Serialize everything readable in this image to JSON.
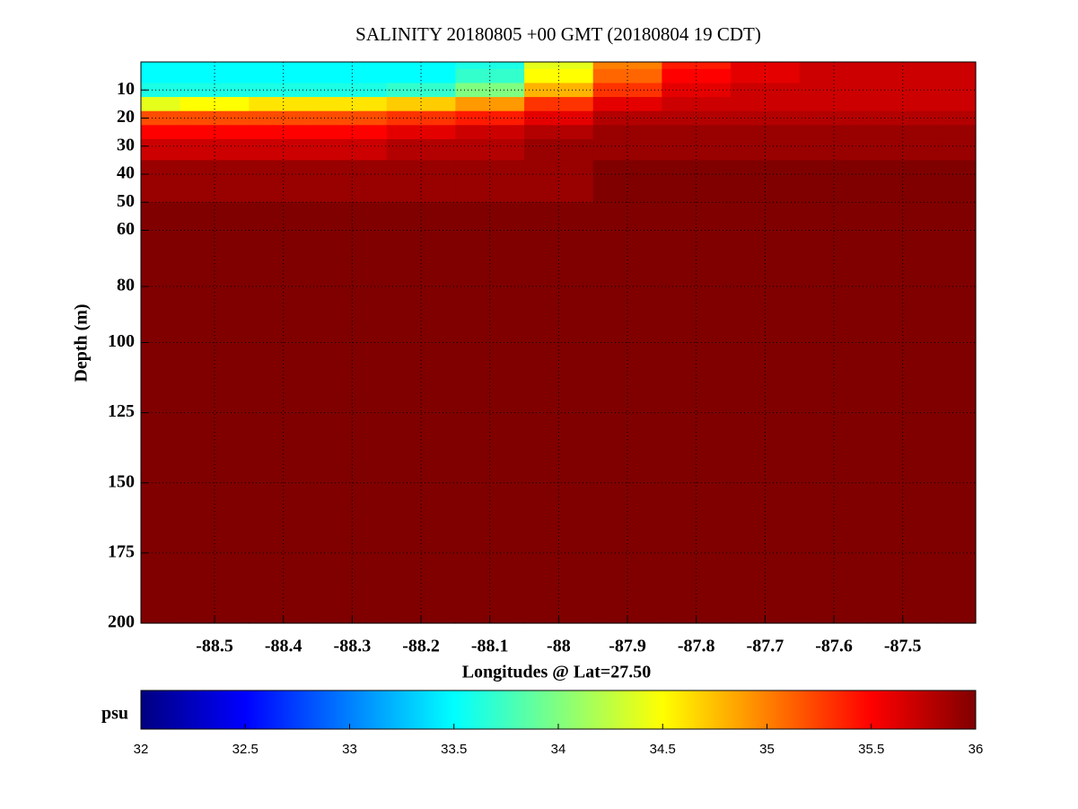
{
  "chart_data": {
    "type": "heatmap",
    "title": "SALINITY 20180805 +00 GMT (20180804 19 CDT)",
    "xlabel": "Longitudes @ Lat=27.50",
    "ylabel": "Depth (m)",
    "x": [
      -88.6,
      -88.5,
      -88.4,
      -88.3,
      -88.2,
      -88.1,
      -88.0,
      -87.9,
      -87.8,
      -87.7,
      -87.6,
      -87.5,
      -87.4
    ],
    "y": [
      0,
      5,
      10,
      15,
      20,
      25,
      30,
      40,
      60,
      100,
      200
    ],
    "z": [
      [
        33.5,
        33.5,
        33.5,
        33.5,
        33.5,
        33.6,
        34.4,
        35.0,
        35.4,
        35.6,
        35.7,
        35.7,
        35.7
      ],
      [
        33.5,
        33.5,
        33.5,
        33.5,
        33.5,
        33.7,
        34.5,
        35.1,
        35.5,
        35.6,
        35.7,
        35.7,
        35.7
      ],
      [
        33.6,
        33.6,
        33.6,
        33.6,
        33.7,
        34.0,
        34.8,
        35.3,
        35.6,
        35.7,
        35.7,
        35.7,
        35.7
      ],
      [
        34.4,
        34.5,
        34.6,
        34.6,
        34.7,
        34.9,
        35.3,
        35.6,
        35.7,
        35.7,
        35.7,
        35.7,
        35.7
      ],
      [
        35.2,
        35.2,
        35.2,
        35.2,
        35.3,
        35.4,
        35.6,
        35.8,
        35.8,
        35.8,
        35.8,
        35.8,
        35.8
      ],
      [
        35.5,
        35.5,
        35.5,
        35.5,
        35.6,
        35.7,
        35.8,
        35.9,
        35.9,
        35.9,
        35.9,
        35.9,
        35.9
      ],
      [
        35.7,
        35.7,
        35.7,
        35.7,
        35.8,
        35.8,
        35.9,
        35.9,
        35.9,
        35.9,
        35.9,
        35.9,
        35.9
      ],
      [
        35.9,
        35.9,
        35.9,
        35.9,
        35.9,
        35.9,
        35.9,
        36.0,
        36.0,
        36.0,
        36.0,
        36.0,
        36.0
      ],
      [
        36.0,
        36.0,
        36.0,
        36.0,
        36.0,
        36.0,
        36.0,
        36.0,
        36.0,
        36.0,
        36.0,
        36.0,
        36.0
      ],
      [
        36.0,
        36.0,
        36.0,
        36.0,
        36.0,
        36.0,
        36.0,
        36.0,
        36.0,
        36.0,
        36.0,
        36.0,
        36.0
      ],
      [
        36.0,
        36.0,
        36.0,
        36.0,
        36.0,
        36.0,
        36.0,
        36.0,
        36.0,
        36.0,
        36.0,
        36.0,
        36.0
      ]
    ],
    "xlim": [
      -88.607,
      -87.394
    ],
    "ylim": [
      200,
      0
    ],
    "xticks": [
      -88.5,
      -88.4,
      -88.3,
      -88.2,
      -88.1,
      -88,
      -87.9,
      -87.8,
      -87.7,
      -87.6,
      -87.5
    ],
    "yticks": [
      10,
      20,
      30,
      40,
      50,
      60,
      80,
      100,
      125,
      150,
      175,
      200
    ],
    "grid": true,
    "colormap": "jet",
    "colorbar": {
      "label": "psu",
      "clim": [
        32,
        36
      ],
      "ticks": [
        32,
        32.5,
        33,
        33.5,
        34,
        34.5,
        35,
        35.5,
        36
      ]
    }
  }
}
